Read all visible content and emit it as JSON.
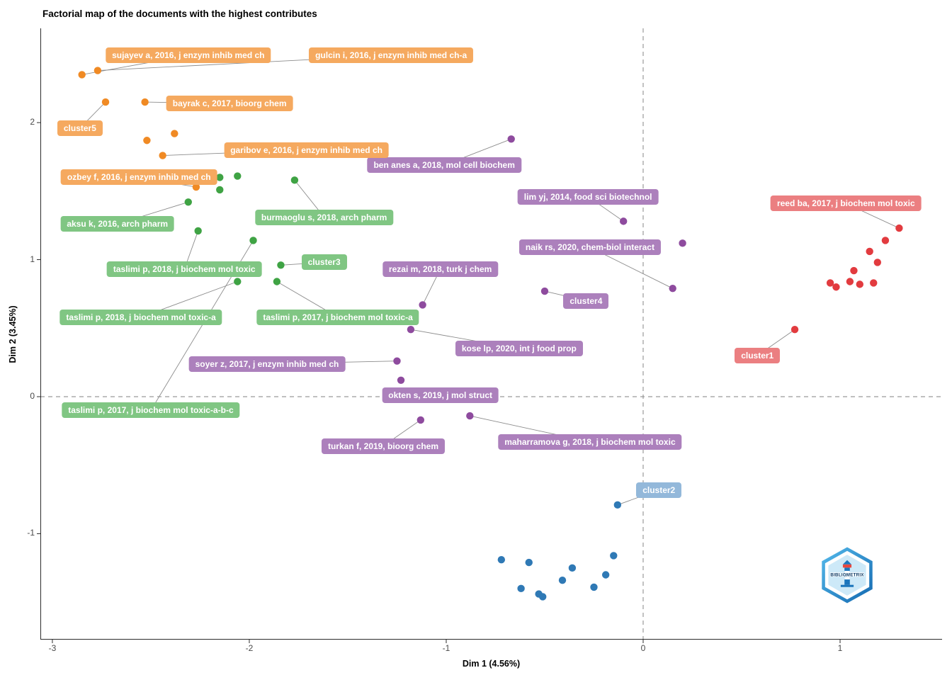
{
  "logo": {
    "text": "BIBLIOMETRIX"
  },
  "chart_data": {
    "type": "scatter",
    "title": "Factorial map of the documents with the highest contributes",
    "xlabel": "Dim 1 (4.56%)",
    "ylabel": "Dim 2 (3.45%)",
    "x_ticks": [
      -3,
      -2,
      -1,
      0,
      1
    ],
    "y_ticks": [
      -1,
      0,
      1,
      2
    ],
    "x_range": [
      -3.061,
      1.518
    ],
    "y_range": [
      -1.773,
      2.688
    ],
    "grid": "off",
    "reference_lines": {
      "x": 0,
      "y": 0,
      "style": "dashed"
    },
    "clusters": [
      {
        "name": "cluster1",
        "color": "#E23B3F",
        "label_bg": "#EB7F81",
        "points": [
          [
            1.3,
            1.23
          ],
          [
            1.23,
            1.14
          ],
          [
            1.15,
            1.06
          ],
          [
            1.19,
            0.98
          ],
          [
            1.07,
            0.92
          ],
          [
            0.95,
            0.83
          ],
          [
            0.98,
            0.8
          ],
          [
            1.05,
            0.84
          ],
          [
            1.1,
            0.82
          ],
          [
            1.17,
            0.83
          ],
          [
            0.77,
            0.49
          ]
        ],
        "labels": [
          {
            "text": "reed ba, 2017, j biochem mol toxic",
            "x": 1.03,
            "y": 1.41,
            "tx": 1.3,
            "ty": 1.23,
            "line": true
          },
          {
            "text": "cluster1",
            "x": 0.58,
            "y": 0.3,
            "tx": 0.77,
            "ty": 0.49,
            "line": true
          }
        ]
      },
      {
        "name": "cluster2",
        "color": "#2F79B5",
        "label_bg": "#93B8DA",
        "points": [
          [
            -0.13,
            -0.79
          ],
          [
            -0.15,
            -1.16
          ],
          [
            -0.72,
            -1.19
          ],
          [
            -0.58,
            -1.21
          ],
          [
            -0.36,
            -1.25
          ],
          [
            -0.19,
            -1.3
          ],
          [
            -0.41,
            -1.34
          ],
          [
            -0.62,
            -1.4
          ],
          [
            -0.25,
            -1.39
          ],
          [
            -0.53,
            -1.44
          ],
          [
            -0.51,
            -1.46
          ]
        ],
        "labels": [
          {
            "text": "cluster2",
            "x": 0.08,
            "y": -0.68,
            "tx": -0.13,
            "ty": -0.79,
            "line": true
          }
        ]
      },
      {
        "name": "cluster3",
        "color": "#3FA344",
        "label_bg": "#80C683",
        "points": [
          [
            -2.15,
            1.6
          ],
          [
            -2.06,
            1.61
          ],
          [
            -1.77,
            1.58
          ],
          [
            -2.15,
            1.51
          ],
          [
            -2.31,
            1.42
          ],
          [
            -2.26,
            1.21
          ],
          [
            -1.98,
            1.14
          ],
          [
            -2.06,
            0.84
          ],
          [
            -1.86,
            0.84
          ],
          [
            -1.84,
            0.96
          ]
        ],
        "labels": [
          {
            "text": "aksu k, 2016, arch pharm",
            "x": -2.67,
            "y": 1.26,
            "tx": -2.31,
            "ty": 1.42,
            "line": true
          },
          {
            "text": "burmaoglu s, 2018, arch pharm",
            "x": -1.62,
            "y": 1.31,
            "tx": -1.77,
            "ty": 1.58,
            "line": true
          },
          {
            "text": "cluster3",
            "x": -1.62,
            "y": 0.98,
            "tx": -1.84,
            "ty": 0.96,
            "line": true
          },
          {
            "text": "taslimi p, 2018, j biochem mol toxic",
            "x": -2.33,
            "y": 0.93,
            "tx": -2.26,
            "ty": 1.21,
            "line": true
          },
          {
            "text": "taslimi p, 2018, j biochem mol toxic-a",
            "x": -2.55,
            "y": 0.58,
            "tx": -2.06,
            "ty": 0.84,
            "line": true
          },
          {
            "text": "taslimi p, 2017, j biochem mol toxic-a",
            "x": -1.55,
            "y": 0.58,
            "tx": -1.86,
            "ty": 0.84,
            "line": true
          },
          {
            "text": "taslimi p, 2017, j biochem mol toxic-a-b-c",
            "x": -2.5,
            "y": -0.1,
            "tx": -1.98,
            "ty": 1.14,
            "line": true
          }
        ]
      },
      {
        "name": "cluster4",
        "color": "#8E4B9E",
        "label_bg": "#AC80BC",
        "points": [
          [
            -0.67,
            1.88
          ],
          [
            -0.1,
            1.28
          ],
          [
            0.2,
            1.12
          ],
          [
            0.15,
            0.79
          ],
          [
            -0.5,
            0.77
          ],
          [
            -1.12,
            0.67
          ],
          [
            -1.18,
            0.49
          ],
          [
            -1.25,
            0.26
          ],
          [
            -1.23,
            0.12
          ],
          [
            -1.25,
            0.02
          ],
          [
            -1.13,
            -0.17
          ],
          [
            -0.88,
            -0.14
          ]
        ],
        "labels": [
          {
            "text": "ben anes a, 2018, mol cell biochem",
            "x": -1.01,
            "y": 1.69,
            "tx": -0.67,
            "ty": 1.88,
            "line": true
          },
          {
            "text": "lim yj, 2014, food sci biotechnol",
            "x": -0.28,
            "y": 1.46,
            "tx": -0.1,
            "ty": 1.28,
            "line": true
          },
          {
            "text": "naik rs, 2020, chem-biol interact",
            "x": -0.27,
            "y": 1.09,
            "tx": 0.15,
            "ty": 0.79,
            "line": true
          },
          {
            "text": "rezai m, 2018, turk j chem",
            "x": -1.03,
            "y": 0.93,
            "tx": -1.12,
            "ty": 0.67,
            "line": true
          },
          {
            "text": "cluster4",
            "x": -0.29,
            "y": 0.7,
            "tx": -0.5,
            "ty": 0.77,
            "line": true
          },
          {
            "text": "kose lp, 2020, int j food prop",
            "x": -0.63,
            "y": 0.35,
            "tx": -1.18,
            "ty": 0.49,
            "line": true
          },
          {
            "text": "soyer z, 2017, j enzym inhib med ch",
            "x": -1.91,
            "y": 0.24,
            "tx": -1.25,
            "ty": 0.26,
            "line": true
          },
          {
            "text": "okten s, 2019, j mol struct",
            "x": -1.03,
            "y": 0.01,
            "tx": -1.25,
            "ty": 0.02,
            "line": false
          },
          {
            "text": "turkan f, 2019, bioorg chem",
            "x": -1.32,
            "y": -0.36,
            "tx": -1.13,
            "ty": -0.17,
            "line": true
          },
          {
            "text": "maharramova g, 2018, j biochem mol toxic",
            "x": -0.27,
            "y": -0.33,
            "tx": -0.88,
            "ty": -0.14,
            "line": true
          }
        ]
      },
      {
        "name": "cluster5",
        "color": "#F08A24",
        "label_bg": "#F5A95F",
        "points": [
          [
            -2.85,
            2.35
          ],
          [
            -2.77,
            2.38
          ],
          [
            -2.73,
            2.15
          ],
          [
            -2.53,
            2.15
          ],
          [
            -2.52,
            1.87
          ],
          [
            -2.38,
            1.92
          ],
          [
            -2.44,
            1.76
          ],
          [
            -2.27,
            1.53
          ]
        ],
        "labels": [
          {
            "text": "sujayev a, 2016, j enzym inhib med ch",
            "x": -2.31,
            "y": 2.49,
            "tx": -2.85,
            "ty": 2.35,
            "line": true
          },
          {
            "text": "gulcin i, 2016, j enzym inhib med ch-a",
            "x": -1.28,
            "y": 2.49,
            "tx": -2.77,
            "ty": 2.38,
            "line": true
          },
          {
            "text": "bayrak c, 2017, bioorg chem",
            "x": -2.1,
            "y": 2.14,
            "tx": -2.53,
            "ty": 2.15,
            "line": true
          },
          {
            "text": "cluster5",
            "x": -2.86,
            "y": 1.96,
            "tx": -2.73,
            "ty": 2.15,
            "line": true
          },
          {
            "text": "garibov e, 2016, j enzym inhib med ch",
            "x": -1.71,
            "y": 1.8,
            "tx": -2.44,
            "ty": 1.76,
            "line": true
          },
          {
            "text": "ozbey f, 2016, j enzym inhib med ch",
            "x": -2.56,
            "y": 1.6,
            "tx": -2.27,
            "ty": 1.53,
            "line": true
          }
        ]
      }
    ]
  }
}
